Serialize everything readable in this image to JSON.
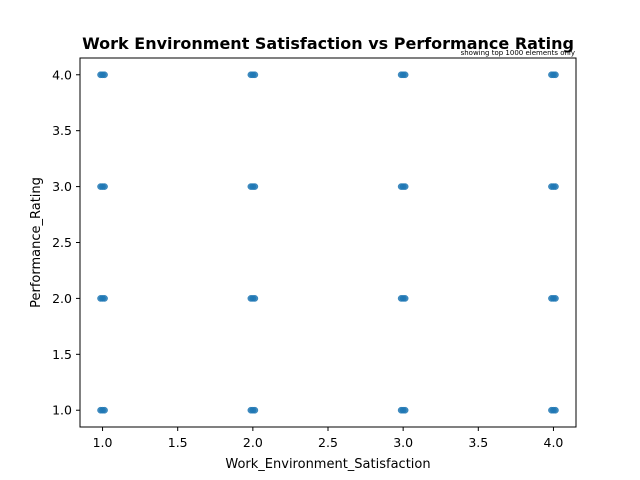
{
  "chart_data": {
    "type": "scatter",
    "title": "Work Environment Satisfaction vs Performance Rating",
    "note": "showing top 1000 elements only",
    "xlabel": "Work_Environment_Satisfaction",
    "ylabel": "Performance_Rating",
    "xlim": [
      0.85,
      4.15
    ],
    "ylim": [
      0.85,
      4.15
    ],
    "xticks": [
      1.0,
      1.5,
      2.0,
      2.5,
      3.0,
      3.5,
      4.0
    ],
    "xtick_labels": [
      "1.0",
      "1.5",
      "2.0",
      "2.5",
      "3.0",
      "3.5",
      "4.0"
    ],
    "yticks": [
      1.0,
      1.5,
      2.0,
      2.5,
      3.0,
      3.5,
      4.0
    ],
    "ytick_labels": [
      "1.0",
      "1.5",
      "2.0",
      "2.5",
      "3.0",
      "3.5",
      "4.0"
    ],
    "grid": false,
    "marker_color": "#1f77b4",
    "points": [
      {
        "x": 1,
        "y": 1
      },
      {
        "x": 1,
        "y": 2
      },
      {
        "x": 1,
        "y": 3
      },
      {
        "x": 1,
        "y": 4
      },
      {
        "x": 2,
        "y": 1
      },
      {
        "x": 2,
        "y": 2
      },
      {
        "x": 2,
        "y": 3
      },
      {
        "x": 2,
        "y": 4
      },
      {
        "x": 3,
        "y": 1
      },
      {
        "x": 3,
        "y": 2
      },
      {
        "x": 3,
        "y": 3
      },
      {
        "x": 3,
        "y": 4
      },
      {
        "x": 4,
        "y": 1
      },
      {
        "x": 4,
        "y": 2
      },
      {
        "x": 4,
        "y": 3
      },
      {
        "x": 4,
        "y": 4
      }
    ]
  }
}
